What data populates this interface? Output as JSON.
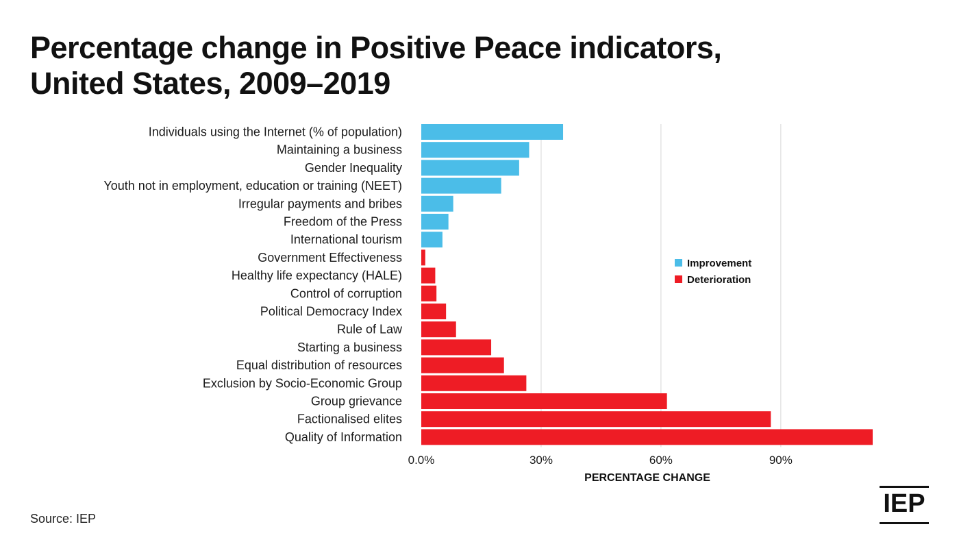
{
  "header": {
    "title_line1": "Percentage change in Positive Peace indicators,",
    "title_line2": "United States, 2009–2019"
  },
  "footer": {
    "source": "Source: IEP",
    "logo_text": "IEP"
  },
  "colors": {
    "improvement": "#4BBDE8",
    "deterioration": "#EE1C25",
    "grid": "#d6d6d6",
    "text": "#1a1a1a"
  },
  "chart_data": {
    "type": "bar",
    "orientation": "horizontal",
    "categories": [
      "Individuals using the Internet (% of population)",
      "Maintaining a business",
      "Gender Inequality",
      "Youth not in employment, education or training (NEET)",
      "Irregular payments and bribes",
      "Freedom of the Press",
      "International tourism",
      "Government Effectiveness",
      "Healthy life expectancy (HALE)",
      "Control of corruption",
      "Political Democracy Index",
      "Rule of Law",
      "Starting a business",
      "Equal distribution of resources",
      "Exclusion by Socio-Economic Group",
      "Group grievance",
      "Factionalised elites",
      "Quality of Information"
    ],
    "values": [
      35.5,
      27,
      24.5,
      20,
      8,
      6.8,
      5.3,
      1.0,
      3.5,
      3.8,
      6.2,
      8.7,
      17.5,
      20.7,
      26.3,
      61.5,
      87.5,
      113
    ],
    "groups": [
      "Improvement",
      "Improvement",
      "Improvement",
      "Improvement",
      "Improvement",
      "Improvement",
      "Improvement",
      "Deterioration",
      "Deterioration",
      "Deterioration",
      "Deterioration",
      "Deterioration",
      "Deterioration",
      "Deterioration",
      "Deterioration",
      "Deterioration",
      "Deterioration",
      "Deterioration"
    ],
    "legend": [
      "Improvement",
      "Deterioration"
    ],
    "legend_position": "right",
    "xlabel": "PERCENTAGE CHANGE",
    "ylabel": "",
    "xlim": [
      0,
      113
    ],
    "xticks": [
      0,
      30,
      60,
      90
    ],
    "xtick_labels": [
      "0.0%",
      "30%",
      "60%",
      "90%"
    ],
    "grid": true
  }
}
